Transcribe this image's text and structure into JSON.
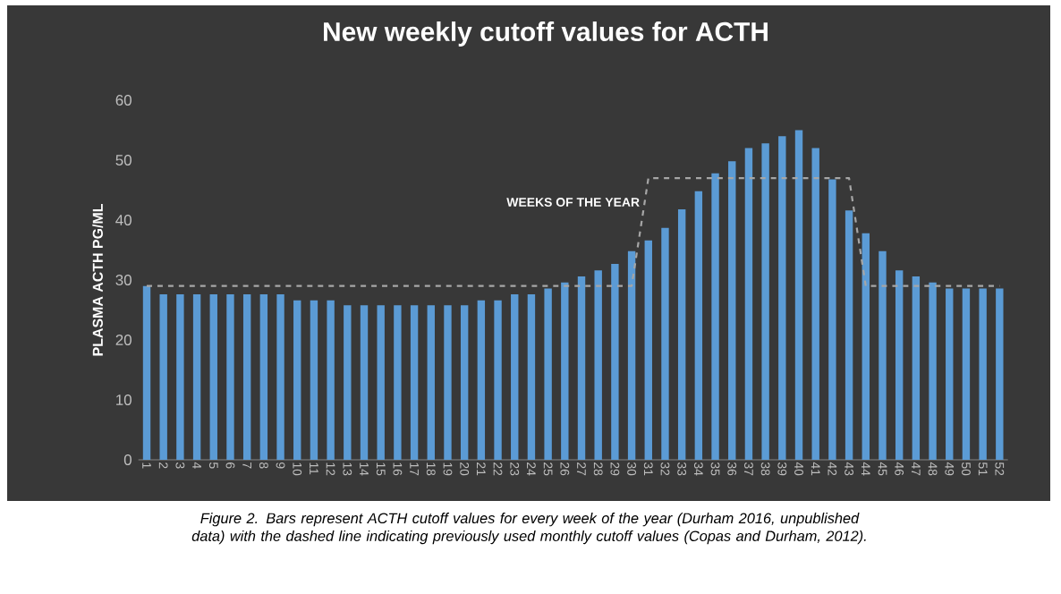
{
  "chart_data": {
    "type": "bar",
    "title": "New weekly cutoff values for ACTH",
    "xlabel": "WEEKS OF THE YEAR",
    "ylabel": "PLASMA ACTH PG/ML",
    "categories": [
      "1",
      "2",
      "3",
      "4",
      "5",
      "6",
      "7",
      "8",
      "9",
      "10",
      "11",
      "12",
      "13",
      "14",
      "15",
      "16",
      "17",
      "18",
      "19",
      "20",
      "21",
      "22",
      "23",
      "24",
      "25",
      "26",
      "27",
      "28",
      "29",
      "30",
      "31",
      "32",
      "33",
      "34",
      "35",
      "36",
      "37",
      "38",
      "39",
      "40",
      "41",
      "42",
      "43",
      "44",
      "45",
      "46",
      "47",
      "48",
      "49",
      "50",
      "51",
      "52"
    ],
    "series": [
      {
        "color": "#5b9bd5",
        "values": [
          29,
          27.6,
          27.6,
          27.6,
          27.6,
          27.6,
          27.6,
          27.6,
          27.6,
          26.6,
          26.6,
          26.6,
          25.8,
          25.8,
          25.8,
          25.8,
          25.8,
          25.8,
          25.8,
          25.8,
          26.6,
          26.6,
          27.6,
          27.6,
          28.6,
          29.6,
          30.6,
          31.6,
          32.7,
          34.8,
          36.6,
          38.7,
          41.8,
          44.8,
          47.8,
          49.8,
          52,
          52.8,
          54,
          55,
          52,
          46.8,
          41.6,
          37.8,
          34.8,
          31.6,
          30.6,
          29.6,
          28.6,
          28.6,
          28.6,
          28.6
        ]
      },
      {
        "type": "line",
        "color": "#a6a6a6",
        "line_style": "dashed",
        "values": [
          29,
          29,
          29,
          29,
          29,
          29,
          29,
          29,
          29,
          29,
          29,
          29,
          29,
          29,
          29,
          29,
          29,
          29,
          29,
          29,
          29,
          29,
          29,
          29,
          29,
          29,
          29,
          29,
          29,
          29,
          47,
          47,
          47,
          47,
          47,
          47,
          47,
          47,
          47,
          47,
          47,
          47,
          47,
          29,
          29,
          29,
          29,
          29,
          29,
          29,
          29,
          29
        ]
      }
    ],
    "ylim": [
      0,
      60
    ],
    "yticks": [
      0,
      10,
      20,
      30,
      40,
      50,
      60
    ],
    "grid": false,
    "annotations": [
      "Figure 2. Bars represent ACTH cutoff values for every week of the year (Durham 2016, unpublished data) with the dashed line indicating previously used monthly cutoff values (Copas and Durham, 2012)."
    ]
  }
}
